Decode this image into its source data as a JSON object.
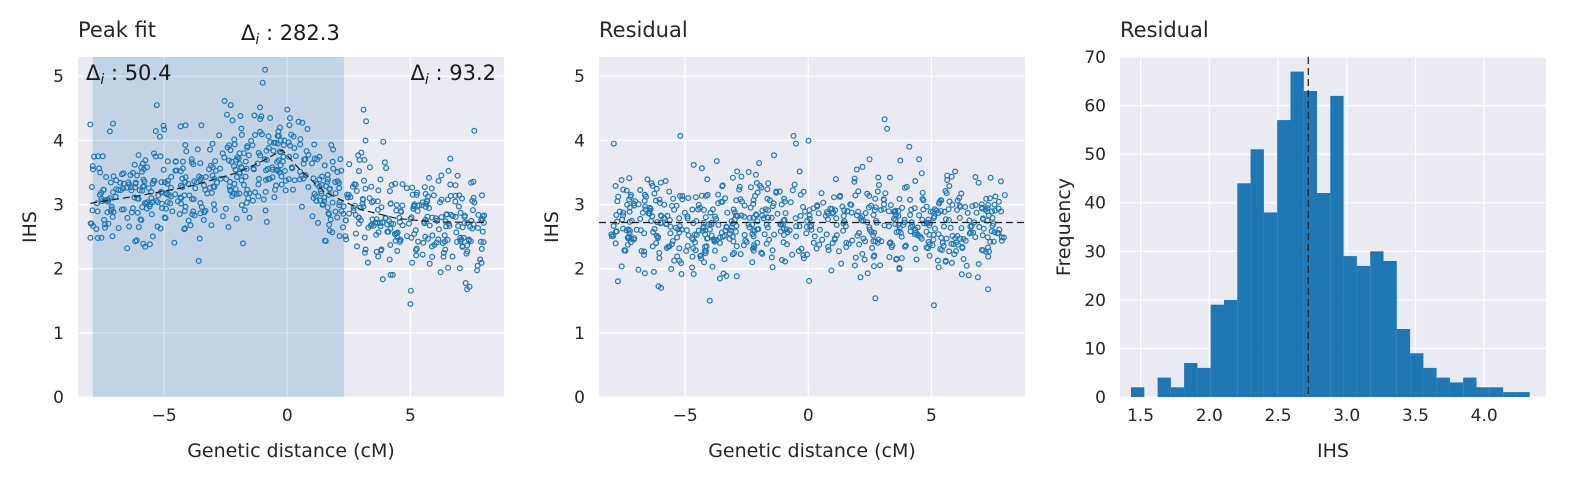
{
  "chart_data": [
    {
      "type": "scatter",
      "title": "Peak fit",
      "xlabel": "Genetic distance (cM)",
      "ylabel": "IHS",
      "xlim": [
        -8.5,
        8.8
      ],
      "ylim": [
        0,
        5.3
      ],
      "xticks": [
        -5,
        0,
        5
      ],
      "yticks": [
        0,
        1,
        2,
        3,
        4,
        5
      ],
      "grid": true,
      "shaded_region": {
        "x": [
          -7.9,
          2.3
        ]
      },
      "fit_line": {
        "x": [
          -8,
          -6,
          -4,
          -2,
          -1,
          -0.2,
          0.5,
          1.5,
          3,
          4.5,
          6,
          8
        ],
        "y": [
          3.02,
          3.14,
          3.28,
          3.5,
          3.68,
          3.85,
          3.55,
          3.2,
          2.92,
          2.78,
          2.73,
          2.72
        ]
      },
      "annotations": [
        {
          "text": "Δ",
          "sub": "i",
          "rest": " : 50.4",
          "position": "top-left-inside"
        },
        {
          "text": "Δ",
          "sub": "i",
          "rest": " : 282.3",
          "position": "above-plot-center"
        },
        {
          "text": "Δ",
          "sub": "i",
          "rest": " : 93.2",
          "position": "top-right-inside"
        }
      ],
      "n_points": 700,
      "points_sample_note": "",
      "series": [
        {
          "sample_x": [
            -8,
            -7.9,
            -7.6,
            -6.5,
            -5.3,
            -5.0,
            -4.1,
            -3.6,
            -2.3,
            -1.9,
            -1.0,
            -0.9,
            -0.3,
            0.0,
            3.1,
            3.2,
            3.9,
            5.0,
            7.3,
            7.4
          ],
          "sample_y": [
            4.25,
            3.6,
            3.5,
            2.32,
            4.55,
            4.17,
            3.83,
            2.12,
            4.55,
            4.38,
            4.9,
            5.1,
            4.2,
            4.48,
            4.48,
            4.3,
            3.98,
            1.45,
            1.68,
            1.72
          ]
        }
      ]
    },
    {
      "type": "scatter",
      "title": "Residual",
      "xlabel": "Genetic distance (cM)",
      "ylabel": "IHS",
      "xlim": [
        -8.5,
        8.8
      ],
      "ylim": [
        0,
        5.3
      ],
      "xticks": [
        -5,
        0,
        5
      ],
      "yticks": [
        0,
        1,
        2,
        3,
        4,
        5
      ],
      "grid": true,
      "hline": 2.72,
      "n_points": 700,
      "series": [
        {
          "sample_x": [
            -7.9,
            -5.2,
            -4.0,
            -0.6,
            -0.5,
            3.1,
            3.2,
            4.1,
            5.1,
            7.3
          ],
          "sample_y": [
            3.95,
            4.07,
            1.5,
            4.07,
            3.95,
            4.33,
            4.18,
            3.9,
            1.43,
            1.68
          ]
        }
      ]
    },
    {
      "type": "bar",
      "subtype": "histogram",
      "title": "Residual",
      "xlabel": "IHS",
      "ylabel": "Frequency",
      "xlim": [
        1.35,
        4.45
      ],
      "ylim": [
        0,
        70
      ],
      "xticks": [
        1.5,
        2.0,
        2.5,
        3.0,
        3.5,
        4.0
      ],
      "xtick_labels": [
        "1.5",
        "2.0",
        "2.5",
        "3.0",
        "3.5",
        "4.0"
      ],
      "yticks": [
        0,
        10,
        20,
        30,
        40,
        50,
        60,
        70
      ],
      "grid": true,
      "vline": 2.72,
      "bin_start": 1.43,
      "bin_width": 0.0967,
      "values": [
        2,
        0,
        4,
        2,
        7,
        6,
        19,
        20,
        44,
        51,
        38,
        57,
        67,
        63,
        42,
        62,
        29,
        27,
        30,
        28,
        14,
        9,
        6,
        4,
        3,
        4,
        2,
        2,
        1,
        1
      ]
    }
  ]
}
